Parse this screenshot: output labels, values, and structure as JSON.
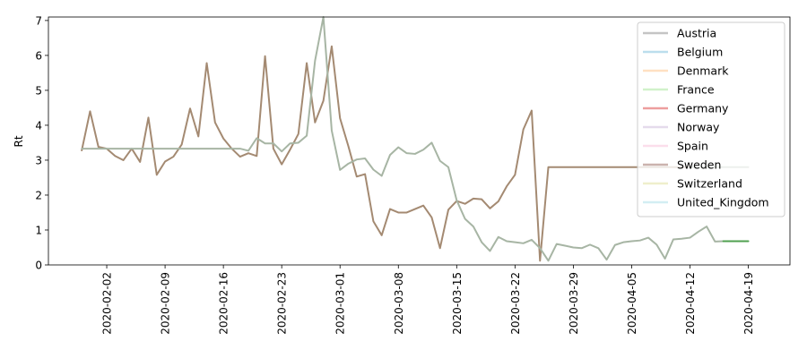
{
  "chart_data": {
    "type": "line",
    "ylabel": "Rt",
    "ylim": [
      0,
      7.1
    ],
    "xlim": [
      "2020-01-26",
      "2020-04-24"
    ],
    "x_tick_labels": [
      "2020-02-02",
      "2020-02-09",
      "2020-02-16",
      "2020-02-23",
      "2020-03-01",
      "2020-03-08",
      "2020-03-15",
      "2020-03-22",
      "2020-03-29",
      "2020-04-05",
      "2020-04-12",
      "2020-04-19"
    ],
    "y_tick_labels": [
      "0",
      "1",
      "2",
      "3",
      "4",
      "5",
      "6",
      "7"
    ],
    "legend": {
      "placement": "upper-right",
      "entries": [
        {
          "name": "Austria",
          "color": "#7f7f7f"
        },
        {
          "name": "Belgium",
          "color": "#6bb6d6"
        },
        {
          "name": "Denmark",
          "color": "#ffbb78"
        },
        {
          "name": "France",
          "color": "#98df8a"
        },
        {
          "name": "Germany",
          "color": "#d62728"
        },
        {
          "name": "Norway",
          "color": "#c5b0d5"
        },
        {
          "name": "Spain",
          "color": "#f7b6d2"
        },
        {
          "name": "Sweden",
          "color": "#8c564b"
        },
        {
          "name": "Switzerland",
          "color": "#dbdb8d"
        },
        {
          "name": "United_Kingdom",
          "color": "#9edae5"
        }
      ]
    },
    "series": [
      {
        "name": "Sweden",
        "color": "#a48a72",
        "points": [
          [
            "2020-01-30",
            3.28
          ],
          [
            "2020-01-31",
            4.4
          ],
          [
            "2020-02-01",
            3.38
          ],
          [
            "2020-02-02",
            3.33
          ],
          [
            "2020-02-03",
            3.12
          ],
          [
            "2020-02-04",
            3.0
          ],
          [
            "2020-02-05",
            3.33
          ],
          [
            "2020-02-06",
            2.95
          ],
          [
            "2020-02-07",
            4.22
          ],
          [
            "2020-02-08",
            2.58
          ],
          [
            "2020-02-09",
            2.96
          ],
          [
            "2020-02-10",
            3.1
          ],
          [
            "2020-02-11",
            3.45
          ],
          [
            "2020-02-12",
            4.48
          ],
          [
            "2020-02-13",
            3.68
          ],
          [
            "2020-02-14",
            5.78
          ],
          [
            "2020-02-15",
            4.08
          ],
          [
            "2020-02-16",
            3.62
          ],
          [
            "2020-02-17",
            3.33
          ],
          [
            "2020-02-18",
            3.1
          ],
          [
            "2020-02-19",
            3.2
          ],
          [
            "2020-02-20",
            3.12
          ],
          [
            "2020-02-21",
            5.98
          ],
          [
            "2020-02-22",
            3.33
          ],
          [
            "2020-02-23",
            2.88
          ],
          [
            "2020-02-24",
            3.3
          ],
          [
            "2020-02-25",
            3.75
          ],
          [
            "2020-02-26",
            5.78
          ],
          [
            "2020-02-27",
            4.08
          ],
          [
            "2020-02-28",
            4.7
          ],
          [
            "2020-02-29",
            6.26
          ],
          [
            "2020-03-01",
            4.2
          ],
          [
            "2020-03-02",
            3.4
          ],
          [
            "2020-03-03",
            2.53
          ],
          [
            "2020-03-04",
            2.6
          ],
          [
            "2020-03-05",
            1.25
          ],
          [
            "2020-03-06",
            0.85
          ],
          [
            "2020-03-07",
            1.6
          ],
          [
            "2020-03-08",
            1.5
          ],
          [
            "2020-03-09",
            1.5
          ],
          [
            "2020-03-10",
            1.6
          ],
          [
            "2020-03-11",
            1.7
          ],
          [
            "2020-03-12",
            1.36
          ],
          [
            "2020-03-13",
            0.48
          ],
          [
            "2020-03-14",
            1.58
          ],
          [
            "2020-03-15",
            1.83
          ],
          [
            "2020-03-16",
            1.75
          ],
          [
            "2020-03-17",
            1.9
          ],
          [
            "2020-03-18",
            1.88
          ],
          [
            "2020-03-19",
            1.62
          ],
          [
            "2020-03-20",
            1.82
          ],
          [
            "2020-03-21",
            2.25
          ],
          [
            "2020-03-22",
            2.58
          ],
          [
            "2020-03-23",
            3.88
          ],
          [
            "2020-03-24",
            4.42
          ],
          [
            "2020-03-25",
            0.12
          ],
          [
            "2020-03-26",
            2.8
          ],
          [
            "2020-03-27",
            2.8
          ],
          [
            "2020-04-12",
            2.8
          ]
        ]
      },
      {
        "name": "France",
        "color": "#a7b5a4",
        "points": [
          [
            "2020-01-30",
            3.33
          ],
          [
            "2020-02-18",
            3.33
          ],
          [
            "2020-02-19",
            3.27
          ],
          [
            "2020-02-20",
            3.63
          ],
          [
            "2020-02-21",
            3.48
          ],
          [
            "2020-02-22",
            3.48
          ],
          [
            "2020-02-23",
            3.25
          ],
          [
            "2020-02-24",
            3.48
          ],
          [
            "2020-02-25",
            3.5
          ],
          [
            "2020-02-26",
            3.7
          ],
          [
            "2020-02-27",
            5.85
          ],
          [
            "2020-02-28",
            7.1
          ],
          [
            "2020-02-29",
            3.85
          ],
          [
            "2020-03-01",
            2.72
          ],
          [
            "2020-03-02",
            2.9
          ],
          [
            "2020-03-03",
            3.02
          ],
          [
            "2020-03-04",
            3.05
          ],
          [
            "2020-03-05",
            2.73
          ],
          [
            "2020-03-06",
            2.55
          ],
          [
            "2020-03-07",
            3.15
          ],
          [
            "2020-03-08",
            3.37
          ],
          [
            "2020-03-09",
            3.2
          ],
          [
            "2020-03-10",
            3.18
          ],
          [
            "2020-03-11",
            3.3
          ],
          [
            "2020-03-12",
            3.5
          ],
          [
            "2020-03-13",
            2.98
          ],
          [
            "2020-03-14",
            2.8
          ],
          [
            "2020-03-15",
            1.85
          ],
          [
            "2020-03-16",
            1.32
          ],
          [
            "2020-03-17",
            1.1
          ],
          [
            "2020-03-18",
            0.65
          ],
          [
            "2020-03-19",
            0.4
          ],
          [
            "2020-03-20",
            0.8
          ],
          [
            "2020-03-21",
            0.68
          ],
          [
            "2020-03-22",
            0.65
          ],
          [
            "2020-03-23",
            0.62
          ],
          [
            "2020-03-24",
            0.72
          ],
          [
            "2020-03-25",
            0.48
          ],
          [
            "2020-03-26",
            0.12
          ],
          [
            "2020-03-27",
            0.6
          ],
          [
            "2020-03-28",
            0.55
          ],
          [
            "2020-03-29",
            0.5
          ],
          [
            "2020-03-30",
            0.48
          ],
          [
            "2020-03-31",
            0.58
          ],
          [
            "2020-04-01",
            0.48
          ],
          [
            "2020-04-02",
            0.15
          ],
          [
            "2020-04-03",
            0.57
          ],
          [
            "2020-04-04",
            0.65
          ],
          [
            "2020-04-05",
            0.68
          ],
          [
            "2020-04-06",
            0.7
          ],
          [
            "2020-04-07",
            0.78
          ],
          [
            "2020-04-08",
            0.58
          ],
          [
            "2020-04-09",
            0.18
          ],
          [
            "2020-04-10",
            0.73
          ],
          [
            "2020-04-11",
            0.75
          ],
          [
            "2020-04-12",
            0.78
          ],
          [
            "2020-04-13",
            0.95
          ],
          [
            "2020-04-14",
            1.1
          ],
          [
            "2020-04-15",
            0.67
          ],
          [
            "2020-04-16",
            0.68
          ]
        ]
      },
      {
        "name": "Sweden-projection",
        "color": "#a7b5a4",
        "points": [
          [
            "2020-04-12",
            2.8
          ],
          [
            "2020-04-19",
            2.8
          ]
        ]
      },
      {
        "name": "France-projection",
        "color": "#4fa04f",
        "points": [
          [
            "2020-04-16",
            0.68
          ],
          [
            "2020-04-19",
            0.68
          ]
        ]
      }
    ]
  }
}
